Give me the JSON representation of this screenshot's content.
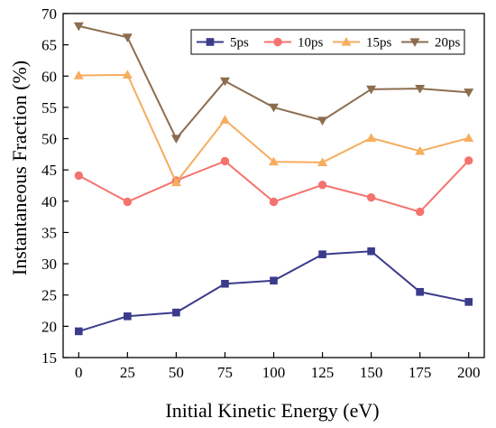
{
  "chart_data": {
    "type": "line",
    "title": "",
    "xlabel": "Initial Kinetic Energy (eV)",
    "ylabel": "Instantaneous Fraction (%)",
    "x": [
      0,
      25,
      50,
      75,
      100,
      125,
      150,
      175,
      200
    ],
    "xlim": [
      -8,
      208
    ],
    "ylim": [
      15,
      70
    ],
    "xticks": [
      0,
      25,
      50,
      75,
      100,
      125,
      150,
      175,
      200
    ],
    "yticks": [
      15,
      20,
      25,
      30,
      35,
      40,
      45,
      50,
      55,
      60,
      65,
      70
    ],
    "grid": false,
    "legend": "top-right",
    "series": [
      {
        "name": "5ps",
        "color": "#3b3b8c",
        "marker": "square",
        "values": [
          19.2,
          21.6,
          22.2,
          26.8,
          27.3,
          31.5,
          32.0,
          25.5,
          23.9
        ]
      },
      {
        "name": "10ps",
        "color": "#f4736e",
        "marker": "circle",
        "values": [
          44.1,
          39.9,
          43.3,
          46.4,
          39.9,
          42.6,
          40.6,
          38.3,
          46.5
        ]
      },
      {
        "name": "15ps",
        "color": "#f5ad5e",
        "marker": "triangle-up",
        "values": [
          60.1,
          60.2,
          43.0,
          53.0,
          46.3,
          46.2,
          50.1,
          48.0,
          50.1
        ]
      },
      {
        "name": "20ps",
        "color": "#8c6d4f",
        "marker": "triangle-down",
        "values": [
          68.0,
          66.2,
          50.0,
          59.2,
          55.0,
          52.9,
          57.9,
          58.0,
          57.4
        ]
      }
    ]
  }
}
